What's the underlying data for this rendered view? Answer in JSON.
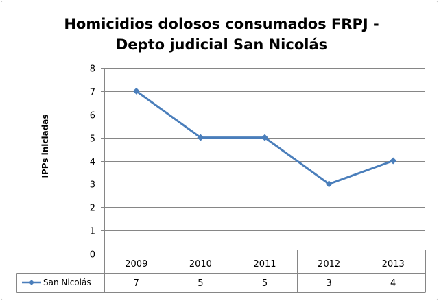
{
  "chart_data": {
    "type": "line",
    "title_lines": [
      "Homicidios dolosos consumados FRPJ -",
      "Depto judicial San Nicolás"
    ],
    "xlabel": "",
    "ylabel": "IPPs iniciadas",
    "categories": [
      "2009",
      "2010",
      "2011",
      "2012",
      "2013"
    ],
    "series": [
      {
        "name": "San Nicolás",
        "values": [
          7,
          5,
          5,
          3,
          4
        ],
        "color": "#4a7ebb"
      }
    ],
    "ylim": [
      0,
      8
    ],
    "yticks": [
      "0",
      "1",
      "2",
      "3",
      "4",
      "5",
      "6",
      "7",
      "8"
    ],
    "grid": true,
    "legend": "data-table",
    "data_table_values": [
      "7",
      "5",
      "5",
      "3",
      "4"
    ]
  }
}
